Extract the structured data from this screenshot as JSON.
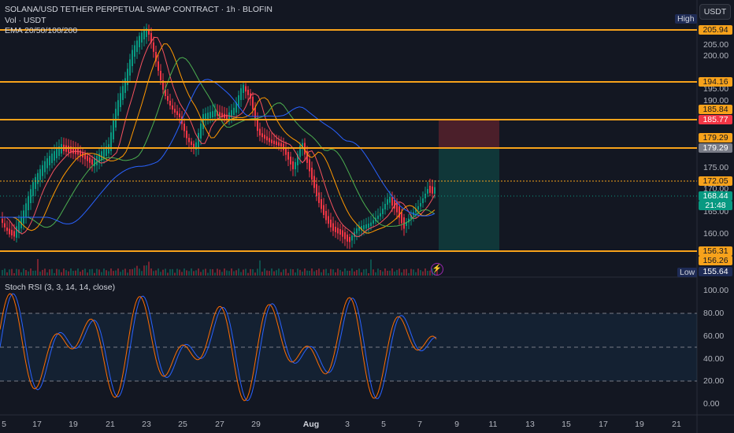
{
  "header": {
    "title": "SOLANA/USD TETHER PERPETUAL SWAP CONTRACT · 1h · BLOFIN",
    "vol_label": "Vol · USDT",
    "ema_label": "EMA 20/50/100/200",
    "currency_button": "USDT"
  },
  "high_label": "High",
  "low_label": "Low",
  "lightning_icon": "lightning-icon",
  "price_axis": {
    "ticks": [
      "205.00",
      "200.00",
      "195.00",
      "190.00",
      "175.00",
      "170.00",
      "165.00",
      "160.00"
    ]
  },
  "price_badges": [
    {
      "text": "205.94",
      "color": "#f7a21b",
      "text_color": "#131722"
    },
    {
      "text": "194.16",
      "color": "#f7a21b",
      "text_color": "#131722"
    },
    {
      "text": "185.84",
      "color": "#f7a21b",
      "text_color": "#131722"
    },
    {
      "text": "185.77",
      "color": "#f23645",
      "text_color": "#ffffff"
    },
    {
      "text": "179.29",
      "color": "#f7a21b",
      "text_color": "#131722"
    },
    {
      "text": "179.29",
      "color": "#787b86",
      "text_color": "#ffffff"
    },
    {
      "text": "172.05",
      "color": "#f7a21b",
      "text_color": "#131722"
    },
    {
      "text": "168.44",
      "color": "#089981",
      "text_color": "#ffffff"
    },
    {
      "text": "21:48",
      "color": "#089981",
      "text_color": "#ffffff"
    },
    {
      "text": "156.31",
      "color": "#f7a21b",
      "text_color": "#131722"
    },
    {
      "text": "156.26",
      "color": "#f7a21b",
      "text_color": "#131722"
    },
    {
      "text": "155.64",
      "color": "#1e2b55",
      "text_color": "#ffffff"
    }
  ],
  "rsi": {
    "label": "Stoch RSI (3, 3, 14, 14, close)",
    "ticks": [
      "100.00",
      "80.00",
      "60.00",
      "40.00",
      "20.00",
      "0.00"
    ]
  },
  "time_axis": [
    "5",
    "17",
    "19",
    "21",
    "23",
    "25",
    "27",
    "29",
    "Aug",
    "3",
    "5",
    "7",
    "9",
    "11",
    "13",
    "15",
    "17",
    "19",
    "21"
  ],
  "colors": {
    "background": "#131722",
    "level_line": "#f7a21b",
    "up": "#089981",
    "down": "#f23645",
    "ema20": "#f7525f",
    "ema50": "#ff9800",
    "ema100": "#4caf50",
    "ema200": "#2962ff",
    "stoch_k": "#2962ff",
    "stoch_d": "#ff6d00"
  }
}
